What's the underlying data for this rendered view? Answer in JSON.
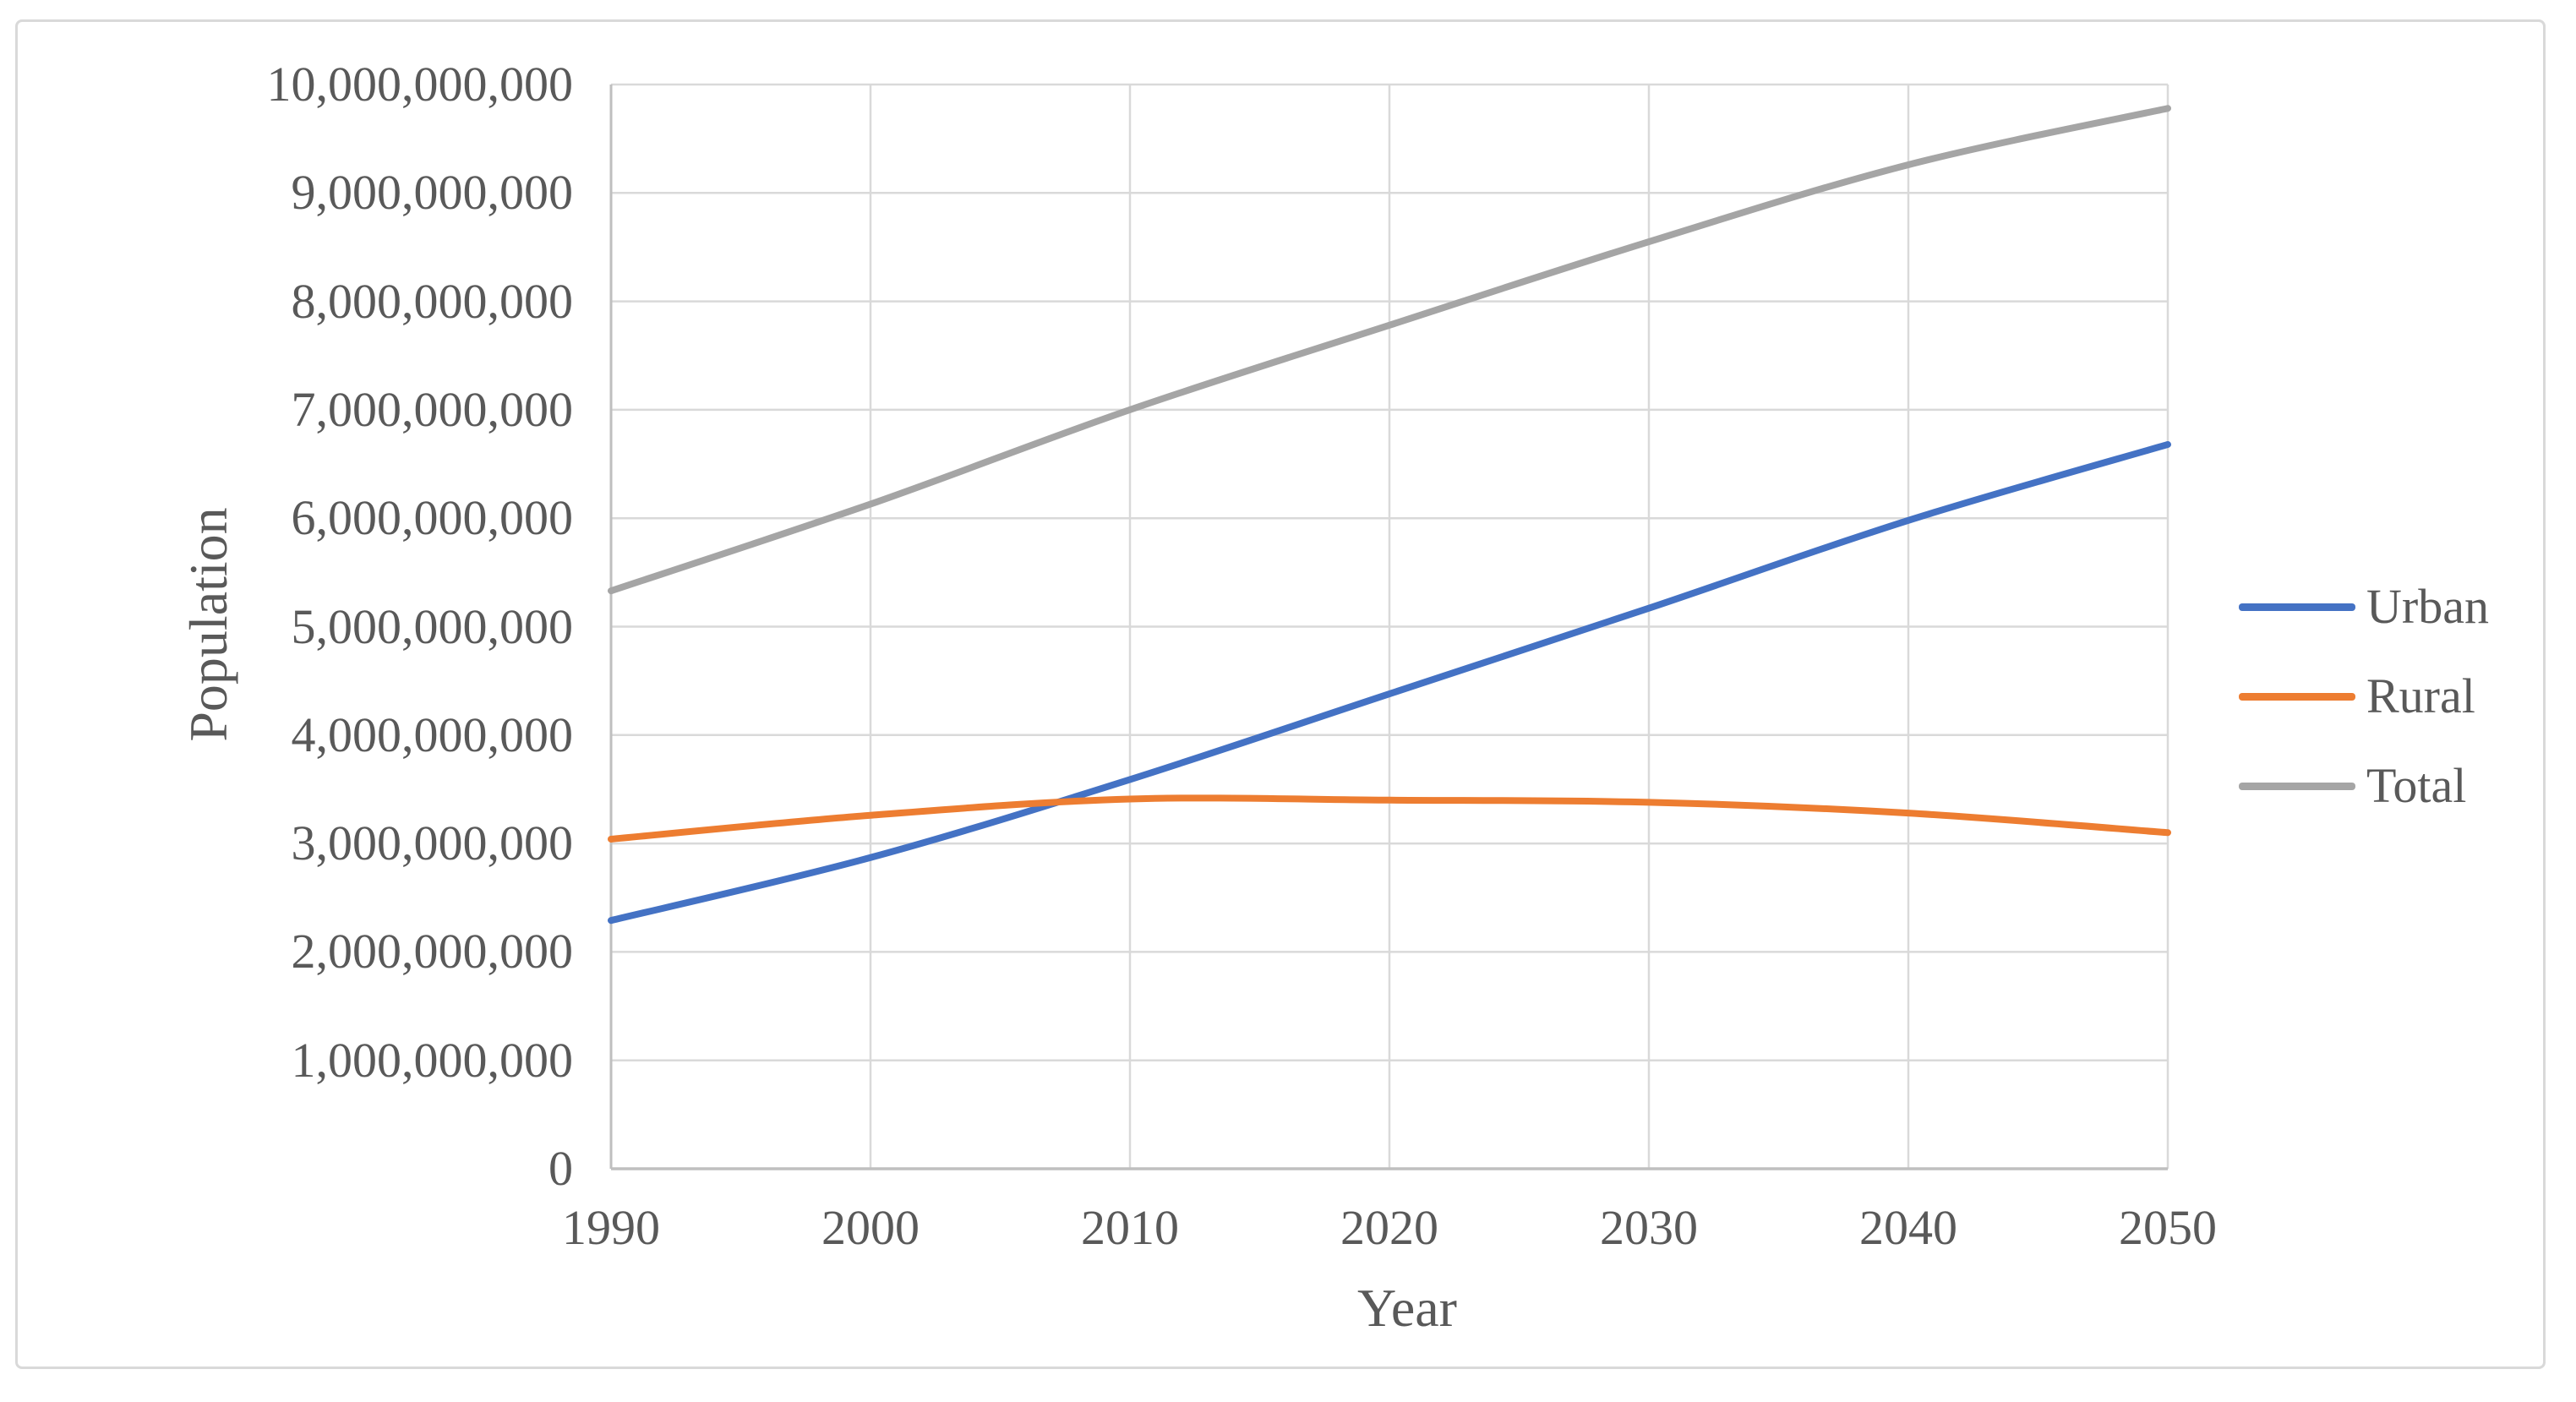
{
  "colors": {
    "background": "#ffffff",
    "chart_border": "#d9d9d9",
    "gridline": "#d9d9d9",
    "axis_line": "#bfbfbf",
    "text": "#595959",
    "urban": "#4472C4",
    "rural": "#ED7D31",
    "total": "#A5A5A5"
  },
  "axes": {
    "y_title": "Population",
    "x_title": "Year"
  },
  "ticks": {
    "y": [
      "0",
      "1,000,000,000",
      "2,000,000,000",
      "3,000,000,000",
      "4,000,000,000",
      "5,000,000,000",
      "6,000,000,000",
      "7,000,000,000",
      "8,000,000,000",
      "9,000,000,000",
      "10,000,000,000"
    ],
    "x": [
      "1990",
      "2000",
      "2010",
      "2020",
      "2030",
      "2040",
      "2050"
    ]
  },
  "legend": {
    "position": "right",
    "items": [
      {
        "label": "Urban",
        "color": "#4472C4"
      },
      {
        "label": "Rural",
        "color": "#ED7D31"
      },
      {
        "label": "Total",
        "color": "#A5A5A5"
      }
    ]
  },
  "chart_data": {
    "type": "line",
    "title": "",
    "xlabel": "Year",
    "ylabel": "Population",
    "x": [
      1990,
      2000,
      2010,
      2020,
      2030,
      2040,
      2050
    ],
    "xlim": [
      1990,
      2050
    ],
    "ylim": [
      0,
      10000000000
    ],
    "y_tick_step": 1000000000,
    "grid": true,
    "legend_position": "right",
    "series": [
      {
        "name": "Urban",
        "color": "#4472C4",
        "values": [
          2290000000,
          2870000000,
          3590000000,
          4380000000,
          5170000000,
          5980000000,
          6680000000
        ]
      },
      {
        "name": "Rural",
        "color": "#ED7D31",
        "values": [
          3040000000,
          3260000000,
          3410000000,
          3400000000,
          3380000000,
          3280000000,
          3100000000
        ]
      },
      {
        "name": "Total",
        "color": "#A5A5A5",
        "values": [
          5330000000,
          6130000000,
          7000000000,
          7780000000,
          8550000000,
          9260000000,
          9780000000
        ]
      }
    ]
  }
}
